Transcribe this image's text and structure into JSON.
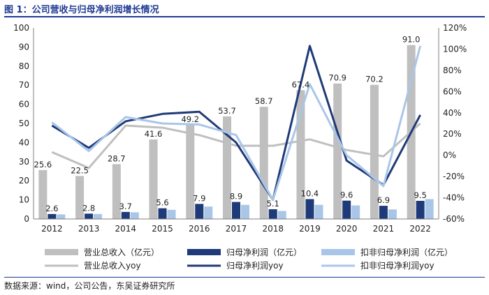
{
  "header": {
    "title": "图 1：公司营收与归母净利润增长情况"
  },
  "footer": {
    "source": "数据来源：wind，公司公告，东吴证券研究所"
  },
  "chart_data": {
    "type": "bar",
    "title": "公司营收与归母净利润增长情况",
    "categories": [
      "2012",
      "2013",
      "2014",
      "2015",
      "2016",
      "2017",
      "2018",
      "2019",
      "2020",
      "2021",
      "2022"
    ],
    "bar_series": [
      {
        "name": "营业总收入（亿元）",
        "color": "#bfbfbf",
        "values": [
          25.6,
          22.5,
          28.7,
          41.6,
          49.2,
          53.7,
          58.7,
          67.4,
          70.9,
          70.2,
          91.0
        ],
        "labels": [
          "25.6",
          "22.5",
          "28.7",
          "41.6",
          "49.2",
          "53.7",
          "58.7",
          "67.4",
          "70.9",
          "70.2",
          "91.0"
        ]
      },
      {
        "name": "归母净利润（亿元）",
        "color": "#1f3a78",
        "values": [
          2.6,
          2.8,
          3.7,
          5.6,
          7.9,
          8.9,
          5.1,
          10.4,
          9.6,
          6.9,
          9.5
        ],
        "labels": [
          "2.6",
          "2.8",
          "3.7",
          "5.6",
          "7.9",
          "8.9",
          "5.1",
          "10.4",
          "9.6",
          "6.9",
          "9.5"
        ]
      },
      {
        "name": "扣非归母净利润（亿元）",
        "color": "#a9c6e8",
        "values": [
          2.4,
          2.6,
          3.5,
          4.8,
          6.5,
          7.4,
          4.2,
          7.4,
          7.1,
          5.0,
          10.4
        ]
      }
    ],
    "line_series": [
      {
        "name": "营业总收入yoy",
        "color": "#bfbfbf",
        "values": [
          3,
          -12,
          28,
          26,
          19,
          9,
          9,
          15,
          5,
          -1,
          30
        ]
      },
      {
        "name": "归母净利润yoy",
        "color": "#1f3a78",
        "values": [
          28,
          7,
          32,
          39,
          41,
          12,
          -42,
          103,
          -5,
          -28,
          38
        ]
      },
      {
        "name": "扣非归母净利润yoy",
        "color": "#a9c6e8",
        "values": [
          31,
          4,
          36,
          30,
          29,
          19,
          -42,
          67,
          0,
          -29,
          103
        ]
      }
    ],
    "y_left": {
      "min": 0,
      "max": 100,
      "step": 10
    },
    "y_right": {
      "min": -60,
      "max": 120,
      "step": 20,
      "unit": "%"
    },
    "legend_position": "bottom"
  }
}
